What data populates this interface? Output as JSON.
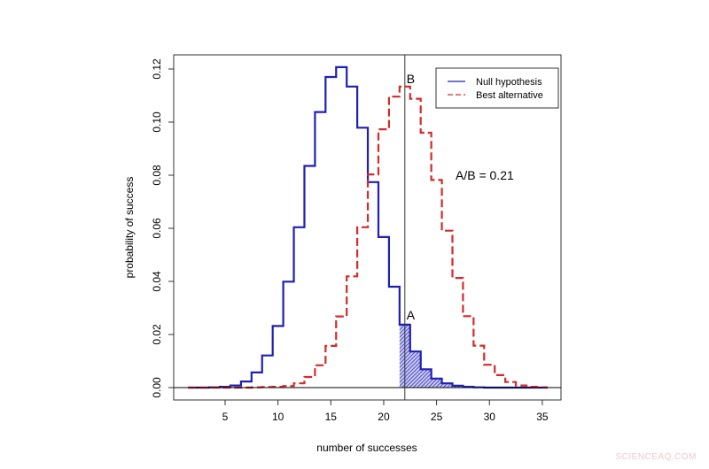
{
  "chart_data": {
    "type": "line",
    "style": "step",
    "title": "",
    "xlabel": "number of successes",
    "ylabel": "probability of success",
    "xlim": [
      1.5,
      36.5
    ],
    "ylim": [
      -0.004,
      0.125
    ],
    "xticks": [
      "5",
      "10",
      "15",
      "20",
      "25",
      "30",
      "35"
    ],
    "yticks": [
      "0.00",
      "0.02",
      "0.04",
      "0.06",
      "0.08",
      "0.10",
      "0.12"
    ],
    "grid": false,
    "legend": {
      "position": "top-right",
      "entries": [
        "Null hypothesis",
        "Best alternative"
      ]
    },
    "x": [
      2,
      3,
      4,
      5,
      6,
      7,
      8,
      9,
      10,
      11,
      12,
      13,
      14,
      15,
      16,
      17,
      18,
      19,
      20,
      21,
      22,
      23,
      24,
      25,
      26,
      27,
      28,
      29,
      30,
      31,
      32,
      33,
      34,
      35
    ],
    "series": [
      {
        "name": "Null hypothesis",
        "color": "#1f1fb4",
        "dash": "solid",
        "values": [
          0.0,
          0.0,
          0.0001,
          0.0003,
          0.0008,
          0.0023,
          0.0057,
          0.0121,
          0.0232,
          0.0399,
          0.0604,
          0.0835,
          0.1038,
          0.117,
          0.1207,
          0.1134,
          0.0979,
          0.0774,
          0.0567,
          0.038,
          0.0237,
          0.0136,
          0.0069,
          0.0034,
          0.0016,
          0.0007,
          0.0003,
          0.0001,
          0.0,
          0.0,
          0.0,
          0.0,
          0.0,
          0.0
        ]
      },
      {
        "name": "Best alternative",
        "color": "#d42a2a",
        "dash": "dashed",
        "values": [
          0.0,
          0.0,
          0.0,
          0.0,
          0.0,
          0.0,
          0.0001,
          0.0002,
          0.0003,
          0.0006,
          0.0016,
          0.004,
          0.0084,
          0.0157,
          0.0268,
          0.0419,
          0.0604,
          0.0803,
          0.0973,
          0.1096,
          0.1134,
          0.1088,
          0.096,
          0.0782,
          0.0591,
          0.0413,
          0.0269,
          0.0158,
          0.0086,
          0.0047,
          0.0021,
          0.0008,
          0.0003,
          0.0001
        ]
      }
    ],
    "vertical_line_x": 22,
    "shaded_region": {
      "series": "Null hypothesis",
      "from_x": 22,
      "fill": "hatched"
    },
    "annotations": [
      {
        "text": "A",
        "x": 22,
        "y": 0.0237
      },
      {
        "text": "B",
        "x": 22,
        "y": 0.1134
      },
      {
        "text": "A/B = 0.21"
      }
    ]
  },
  "watermark": "SCIENCEAQ.COM"
}
